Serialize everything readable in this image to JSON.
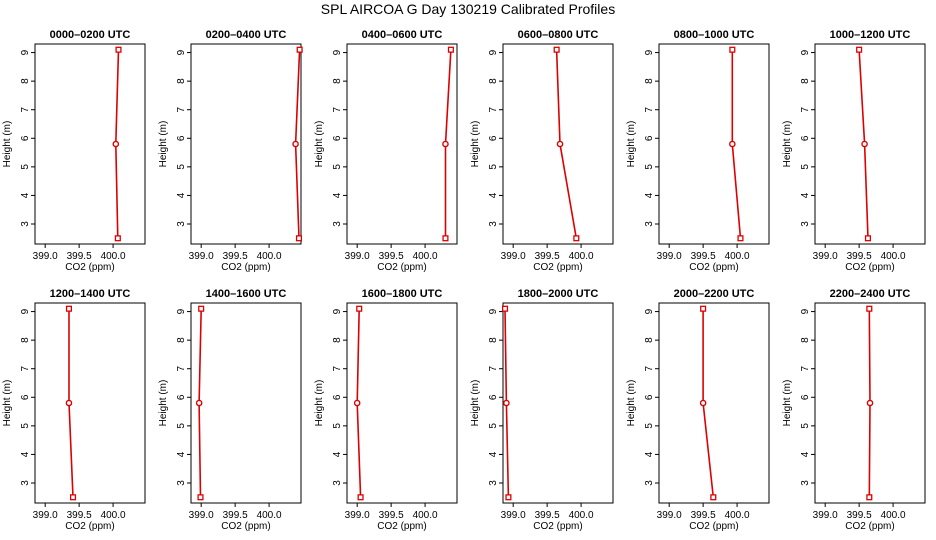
{
  "title": "SPL AIRCOA G  Day 130219  Calibrated Profiles",
  "colors": {
    "line": "#dd0000",
    "axis": "#000000"
  },
  "chart_data": [
    {
      "type": "line",
      "title": "0000–0200 UTC",
      "xlabel": "CO2 (ppm)",
      "ylabel": "Height (m)",
      "xlim": [
        398.85,
        400.47
      ],
      "ylim": [
        2.3,
        9.3
      ],
      "xticks": [
        "399.0",
        "399.5",
        "400.0"
      ],
      "yticks": [
        "3",
        "4",
        "5",
        "6",
        "7",
        "8",
        "9"
      ],
      "x": [
        400.08,
        400.04,
        400.07
      ],
      "y": [
        9.1,
        5.8,
        2.5
      ],
      "grid": false
    },
    {
      "type": "line",
      "title": "0200–0400 UTC",
      "xlabel": "CO2 (ppm)",
      "ylabel": "Height (m)",
      "xlim": [
        398.85,
        400.47
      ],
      "ylim": [
        2.3,
        9.3
      ],
      "xticks": [
        "399.0",
        "399.5",
        "400.0"
      ],
      "yticks": [
        "3",
        "4",
        "5",
        "6",
        "7",
        "8",
        "9"
      ],
      "x": [
        400.45,
        400.39,
        400.44
      ],
      "y": [
        9.1,
        5.8,
        2.5
      ],
      "grid": false
    },
    {
      "type": "line",
      "title": "0400–0600 UTC",
      "xlabel": "CO2 (ppm)",
      "ylabel": "Height (m)",
      "xlim": [
        398.85,
        400.47
      ],
      "ylim": [
        2.3,
        9.3
      ],
      "xticks": [
        "399.0",
        "399.5",
        "400.0"
      ],
      "yticks": [
        "3",
        "4",
        "5",
        "6",
        "7",
        "8",
        "9"
      ],
      "x": [
        400.38,
        400.3,
        400.3
      ],
      "y": [
        9.1,
        5.8,
        2.5
      ],
      "grid": false
    },
    {
      "type": "line",
      "title": "0600–0800 UTC",
      "xlabel": "CO2 (ppm)",
      "ylabel": "Height (m)",
      "xlim": [
        398.85,
        400.47
      ],
      "ylim": [
        2.3,
        9.3
      ],
      "xticks": [
        "399.0",
        "399.5",
        "400.0"
      ],
      "yticks": [
        "3",
        "4",
        "5",
        "6",
        "7",
        "8",
        "9"
      ],
      "x": [
        399.64,
        399.69,
        399.93
      ],
      "y": [
        9.1,
        5.8,
        2.5
      ],
      "grid": false
    },
    {
      "type": "line",
      "title": "0800–1000 UTC",
      "xlabel": "CO2 (ppm)",
      "ylabel": "Height (m)",
      "xlim": [
        398.85,
        400.47
      ],
      "ylim": [
        2.3,
        9.3
      ],
      "xticks": [
        "399.0",
        "399.5",
        "400.0"
      ],
      "yticks": [
        "3",
        "4",
        "5",
        "6",
        "7",
        "8",
        "9"
      ],
      "x": [
        399.93,
        399.93,
        400.05
      ],
      "y": [
        9.1,
        5.8,
        2.5
      ],
      "grid": false
    },
    {
      "type": "line",
      "title": "1000–1200 UTC",
      "xlabel": "CO2 (ppm)",
      "ylabel": "Height (m)",
      "xlim": [
        398.85,
        400.47
      ],
      "ylim": [
        2.3,
        9.3
      ],
      "xticks": [
        "399.0",
        "399.5",
        "400.0"
      ],
      "yticks": [
        "3",
        "4",
        "5",
        "6",
        "7",
        "8",
        "9"
      ],
      "x": [
        399.5,
        399.58,
        399.63
      ],
      "y": [
        9.1,
        5.8,
        2.5
      ],
      "grid": false
    },
    {
      "type": "line",
      "title": "1200–1400 UTC",
      "xlabel": "CO2 (ppm)",
      "ylabel": "Height (m)",
      "xlim": [
        398.85,
        400.47
      ],
      "ylim": [
        2.3,
        9.3
      ],
      "xticks": [
        "399.0",
        "399.5",
        "400.0"
      ],
      "yticks": [
        "3",
        "4",
        "5",
        "6",
        "7",
        "8",
        "9"
      ],
      "x": [
        399.35,
        399.35,
        399.41
      ],
      "y": [
        9.1,
        5.8,
        2.5
      ],
      "grid": false
    },
    {
      "type": "line",
      "title": "1400–1600 UTC",
      "xlabel": "CO2 (ppm)",
      "ylabel": "Height (m)",
      "xlim": [
        398.85,
        400.47
      ],
      "ylim": [
        2.3,
        9.3
      ],
      "xticks": [
        "399.0",
        "399.5",
        "400.0"
      ],
      "yticks": [
        "3",
        "4",
        "5",
        "6",
        "7",
        "8",
        "9"
      ],
      "x": [
        399.0,
        398.97,
        398.99
      ],
      "y": [
        9.1,
        5.8,
        2.5
      ],
      "grid": false
    },
    {
      "type": "line",
      "title": "1600–1800 UTC",
      "xlabel": "CO2 (ppm)",
      "ylabel": "Height (m)",
      "xlim": [
        398.85,
        400.47
      ],
      "ylim": [
        2.3,
        9.3
      ],
      "xticks": [
        "399.0",
        "399.5",
        "400.0"
      ],
      "yticks": [
        "3",
        "4",
        "5",
        "6",
        "7",
        "8",
        "9"
      ],
      "x": [
        399.03,
        399.0,
        399.05
      ],
      "y": [
        9.1,
        5.8,
        2.5
      ],
      "grid": false
    },
    {
      "type": "line",
      "title": "1800–2000 UTC",
      "xlabel": "CO2 (ppm)",
      "ylabel": "Height (m)",
      "xlim": [
        398.85,
        400.47
      ],
      "ylim": [
        2.3,
        9.3
      ],
      "xticks": [
        "399.0",
        "399.5",
        "400.0"
      ],
      "yticks": [
        "3",
        "4",
        "5",
        "6",
        "7",
        "8",
        "9"
      ],
      "x": [
        398.88,
        398.9,
        398.93
      ],
      "y": [
        9.1,
        5.8,
        2.5
      ],
      "grid": false
    },
    {
      "type": "line",
      "title": "2000–2200 UTC",
      "xlabel": "CO2 (ppm)",
      "ylabel": "Height (m)",
      "xlim": [
        398.85,
        400.47
      ],
      "ylim": [
        2.3,
        9.3
      ],
      "xticks": [
        "399.0",
        "399.5",
        "400.0"
      ],
      "yticks": [
        "3",
        "4",
        "5",
        "6",
        "7",
        "8",
        "9"
      ],
      "x": [
        399.5,
        399.5,
        399.65
      ],
      "y": [
        9.1,
        5.8,
        2.5
      ],
      "grid": false
    },
    {
      "type": "line",
      "title": "2200–2400 UTC",
      "xlabel": "CO2 (ppm)",
      "ylabel": "Height (m)",
      "xlim": [
        398.85,
        400.47
      ],
      "ylim": [
        2.3,
        9.3
      ],
      "xticks": [
        "399.0",
        "399.5",
        "400.0"
      ],
      "yticks": [
        "3",
        "4",
        "5",
        "6",
        "7",
        "8",
        "9"
      ],
      "x": [
        399.65,
        399.66,
        399.65
      ],
      "y": [
        9.1,
        5.8,
        2.5
      ],
      "grid": false
    }
  ]
}
